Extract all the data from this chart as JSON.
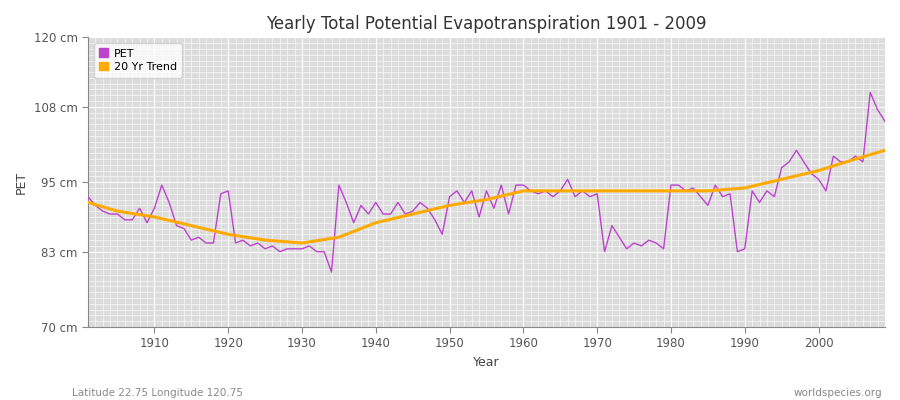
{
  "title": "Yearly Total Potential Evapotranspiration 1901 - 2009",
  "xlabel": "Year",
  "ylabel": "PET",
  "subtitle_left": "Latitude 22.75 Longitude 120.75",
  "subtitle_right": "worldspecies.org",
  "ylim": [
    70,
    120
  ],
  "yticks": [
    70,
    83,
    95,
    108,
    120
  ],
  "ytick_labels": [
    "70 cm",
    "83 cm",
    "95 cm",
    "108 cm",
    "120 cm"
  ],
  "xlim": [
    1901,
    2009
  ],
  "xticks": [
    1910,
    1920,
    1930,
    1940,
    1950,
    1960,
    1970,
    1980,
    1990,
    2000
  ],
  "pet_color": "#bb44cc",
  "trend_color": "#ffaa00",
  "fig_bg_color": "#ffffff",
  "ax_bg_color": "#dcdcdc",
  "legend_labels": [
    "PET",
    "20 Yr Trend"
  ],
  "pet_data": {
    "years": [
      1901,
      1902,
      1903,
      1904,
      1905,
      1906,
      1907,
      1908,
      1909,
      1910,
      1911,
      1912,
      1913,
      1914,
      1915,
      1916,
      1917,
      1918,
      1919,
      1920,
      1921,
      1922,
      1923,
      1924,
      1925,
      1926,
      1927,
      1928,
      1929,
      1930,
      1931,
      1932,
      1933,
      1934,
      1935,
      1936,
      1937,
      1938,
      1939,
      1940,
      1941,
      1942,
      1943,
      1944,
      1945,
      1946,
      1947,
      1948,
      1949,
      1950,
      1951,
      1952,
      1953,
      1954,
      1955,
      1956,
      1957,
      1958,
      1959,
      1960,
      1961,
      1962,
      1963,
      1964,
      1965,
      1966,
      1967,
      1968,
      1969,
      1970,
      1971,
      1972,
      1973,
      1974,
      1975,
      1976,
      1977,
      1978,
      1979,
      1980,
      1981,
      1982,
      1983,
      1984,
      1985,
      1986,
      1987,
      1988,
      1989,
      1990,
      1991,
      1992,
      1993,
      1994,
      1995,
      1996,
      1997,
      1998,
      1999,
      2000,
      2001,
      2002,
      2003,
      2004,
      2005,
      2006,
      2007,
      2008,
      2009
    ],
    "values": [
      92.5,
      91.0,
      90.0,
      89.5,
      89.5,
      88.5,
      88.5,
      90.5,
      88.0,
      90.5,
      94.5,
      91.5,
      87.5,
      87.0,
      85.0,
      85.5,
      84.5,
      84.5,
      93.0,
      93.5,
      84.5,
      85.0,
      84.0,
      84.5,
      83.5,
      84.0,
      83.0,
      83.5,
      83.5,
      83.5,
      84.0,
      83.0,
      83.0,
      79.5,
      94.5,
      91.5,
      88.0,
      91.0,
      89.5,
      91.5,
      89.5,
      89.5,
      91.5,
      89.5,
      90.0,
      91.5,
      90.5,
      88.5,
      86.0,
      92.5,
      93.5,
      91.5,
      93.5,
      89.0,
      93.5,
      90.5,
      94.5,
      89.5,
      94.5,
      94.5,
      93.5,
      93.0,
      93.5,
      92.5,
      93.5,
      95.5,
      92.5,
      93.5,
      92.5,
      93.0,
      83.0,
      87.5,
      85.5,
      83.5,
      84.5,
      84.0,
      85.0,
      84.5,
      83.5,
      94.5,
      94.5,
      93.5,
      94.0,
      92.5,
      91.0,
      94.5,
      92.5,
      93.0,
      83.0,
      83.5,
      93.5,
      91.5,
      93.5,
      92.5,
      97.5,
      98.5,
      100.5,
      98.5,
      96.5,
      95.5,
      93.5,
      99.5,
      98.5,
      98.5,
      99.5,
      98.5,
      110.5,
      107.5,
      105.5
    ]
  },
  "trend_data": {
    "years": [
      1901,
      1905,
      1910,
      1915,
      1920,
      1925,
      1930,
      1935,
      1940,
      1945,
      1950,
      1955,
      1960,
      1965,
      1970,
      1975,
      1980,
      1985,
      1990,
      1995,
      2000,
      2005,
      2009
    ],
    "values": [
      91.5,
      90.0,
      89.0,
      87.5,
      86.0,
      85.0,
      84.5,
      85.5,
      88.0,
      89.5,
      91.0,
      92.0,
      93.5,
      93.5,
      93.5,
      93.5,
      93.5,
      93.5,
      94.0,
      95.5,
      97.0,
      99.0,
      100.5
    ]
  }
}
